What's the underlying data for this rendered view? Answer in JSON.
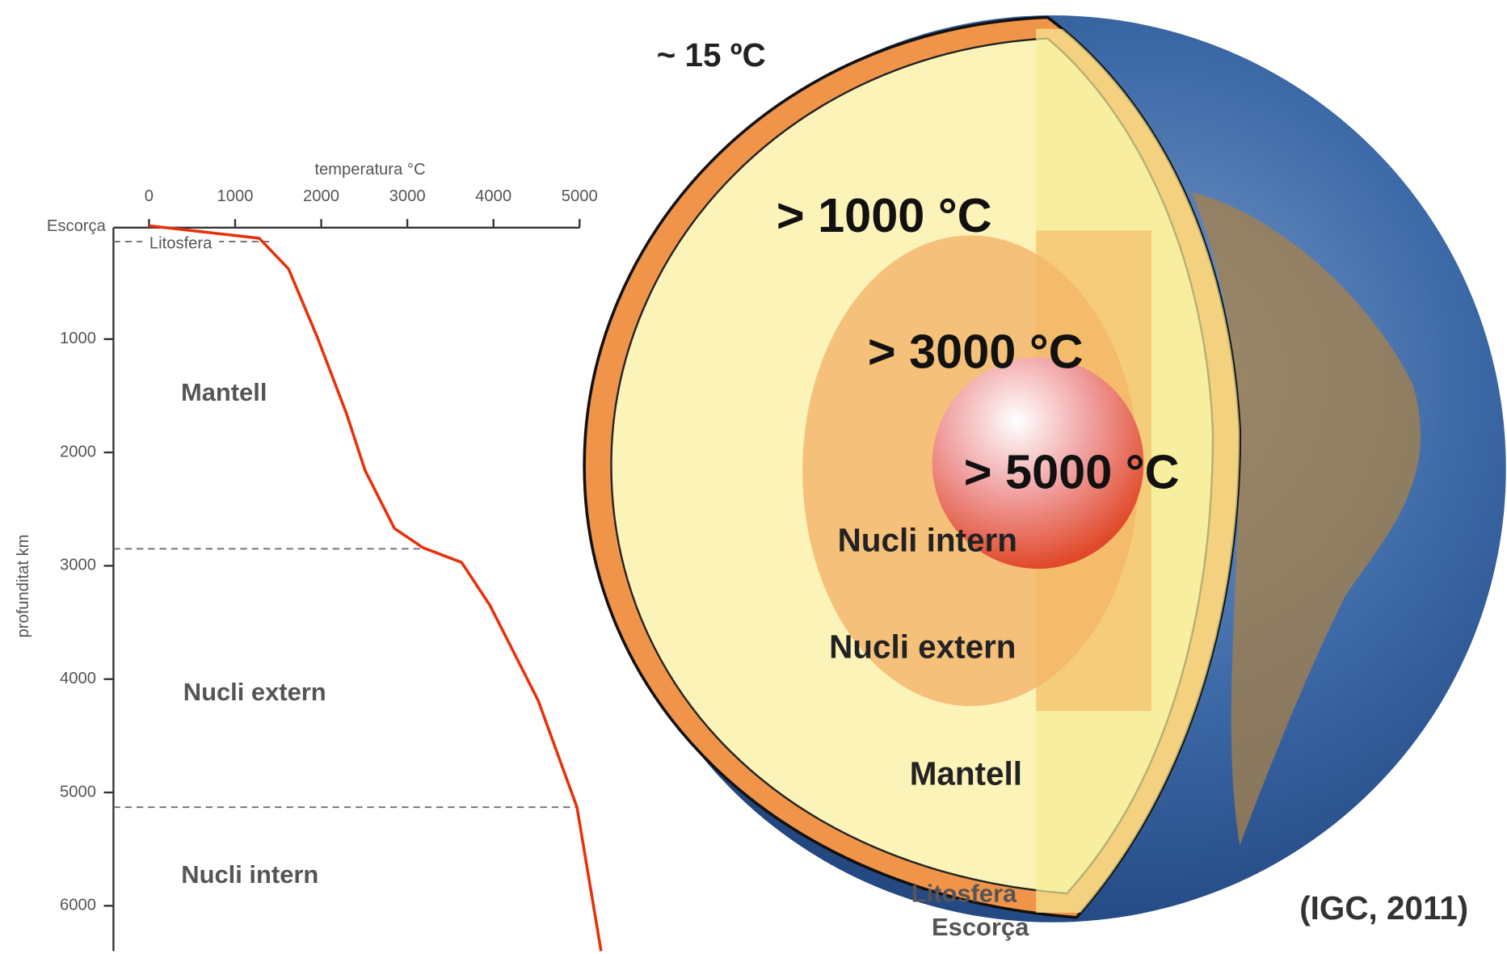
{
  "chart_data": {
    "type": "line",
    "x_label": "temperatura °C",
    "y_label": "profunditat km",
    "x": [
      0,
      1280,
      1620,
      1950,
      2290,
      2510,
      2850,
      3180,
      3630,
      3960,
      4520,
      4970,
      5250
    ],
    "series": [
      {
        "color": "#e8300a",
        "values": [
          0,
          110,
          380,
          975,
          1650,
          2160,
          2670,
          2840,
          2970,
          3350,
          4190,
          5130,
          6400
        ]
      }
    ],
    "xlim": [
      0,
      5000
    ],
    "xticks": [
      0,
      1000,
      2000,
      3000,
      4000,
      5000
    ],
    "ylim": [
      0,
      6400
    ],
    "yticks": [
      1000,
      2000,
      3000,
      4000,
      5000,
      6000
    ],
    "y_inverted": true,
    "boundaries": [
      140,
      2850,
      5130
    ],
    "annotations": [
      "Escorça",
      "Litosfera",
      "Mantell",
      "Nucli extern",
      "Nucli intern"
    ]
  },
  "diagram": {
    "labels": [
      "~ 15 ºC",
      "> 1000 °C",
      "> 3000 °C",
      "> 5000 °C",
      "Nucli intern",
      "Nucli extern",
      "Mantell",
      "Litosfera",
      "Escorça"
    ],
    "source": "(IGC, 2011)"
  }
}
